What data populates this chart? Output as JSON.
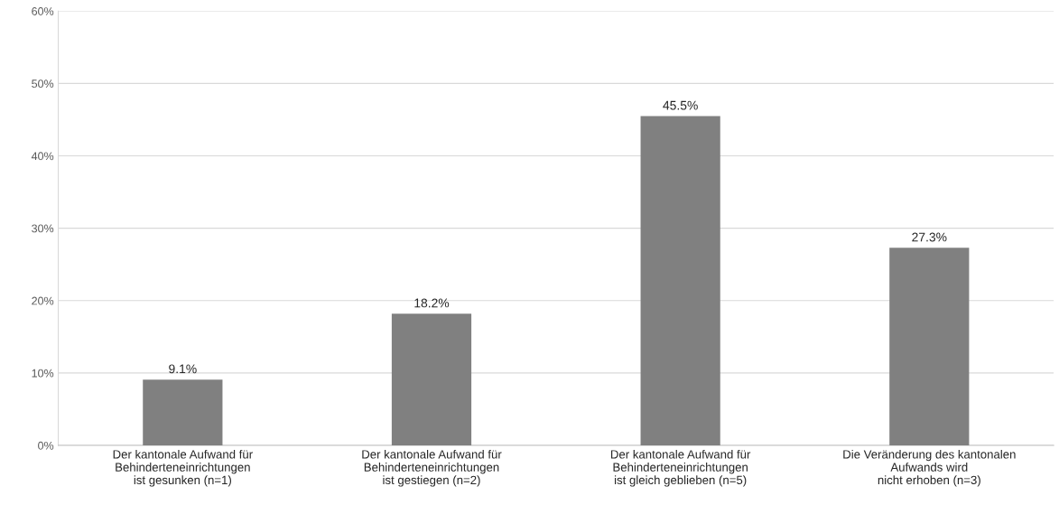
{
  "chart_data": {
    "type": "bar",
    "categories": [
      "Der kantonale Aufwand für\nBehinderteneinrichtungen\nist gesunken (n=1)",
      "Der kantonale Aufwand für\nBehinderteneinrichtungen\nist gestiegen (n=2)",
      "Der kantonale Aufwand für\nBehinderteneinrichtungen\nist gleich geblieben (n=5)",
      "Die Veränderung des kantonalen\nAufwands wird\nnicht erhoben (n=3)"
    ],
    "values": [
      9.1,
      18.2,
      45.5,
      27.3
    ],
    "value_labels": [
      "9.1%",
      "18.2%",
      "45.5%",
      "27.3%"
    ],
    "color": "#808080",
    "ylim": [
      0,
      60
    ],
    "yticks": [
      {
        "value": 0,
        "label": "0%"
      },
      {
        "value": 10,
        "label": "10%"
      },
      {
        "value": 20,
        "label": "20%"
      },
      {
        "value": 30,
        "label": "30%"
      },
      {
        "value": 40,
        "label": "40%"
      },
      {
        "value": 50,
        "label": "50%"
      },
      {
        "value": 60,
        "label": "60%"
      }
    ],
    "grid": "y",
    "legend": false
  }
}
